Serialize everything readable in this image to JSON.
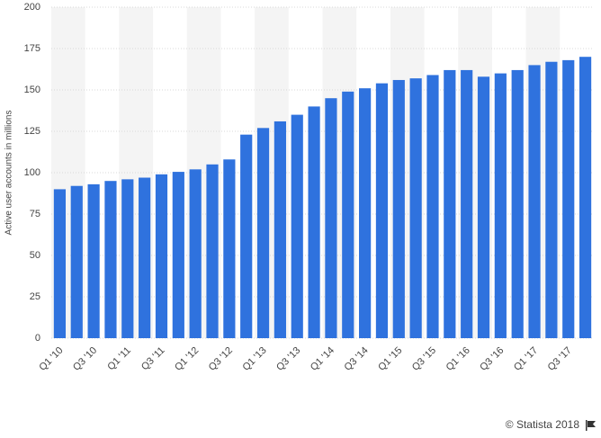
{
  "chart_data": {
    "type": "bar",
    "y_label": "Active user accounts in millions",
    "credit": "© Statista 2018",
    "categories": [
      "Q1 '10",
      null,
      "Q3 '10",
      null,
      "Q1 '11",
      null,
      "Q3 '11",
      null,
      "Q1 '12",
      null,
      "Q3 '12",
      null,
      "Q1 '13",
      null,
      "Q3 '13",
      null,
      "Q1 '14",
      null,
      "Q3 '14",
      null,
      "Q1 '15",
      null,
      "Q3 '15",
      null,
      "Q1 '16",
      null,
      "Q3 '16",
      null,
      "Q1 '17",
      null,
      "Q3 '17",
      null
    ],
    "values": [
      90,
      92,
      93,
      95,
      96,
      97,
      99,
      100.5,
      102,
      105,
      108,
      123,
      127,
      131,
      135,
      140,
      145,
      149,
      151,
      154,
      156,
      157,
      159,
      162,
      162,
      158,
      160,
      162,
      165,
      167,
      168,
      170
    ],
    "color": "#2f72de",
    "ylim": [
      0,
      200
    ],
    "yticks": [
      0,
      25,
      50,
      75,
      100,
      125,
      150,
      175,
      200
    ],
    "grid": true
  }
}
